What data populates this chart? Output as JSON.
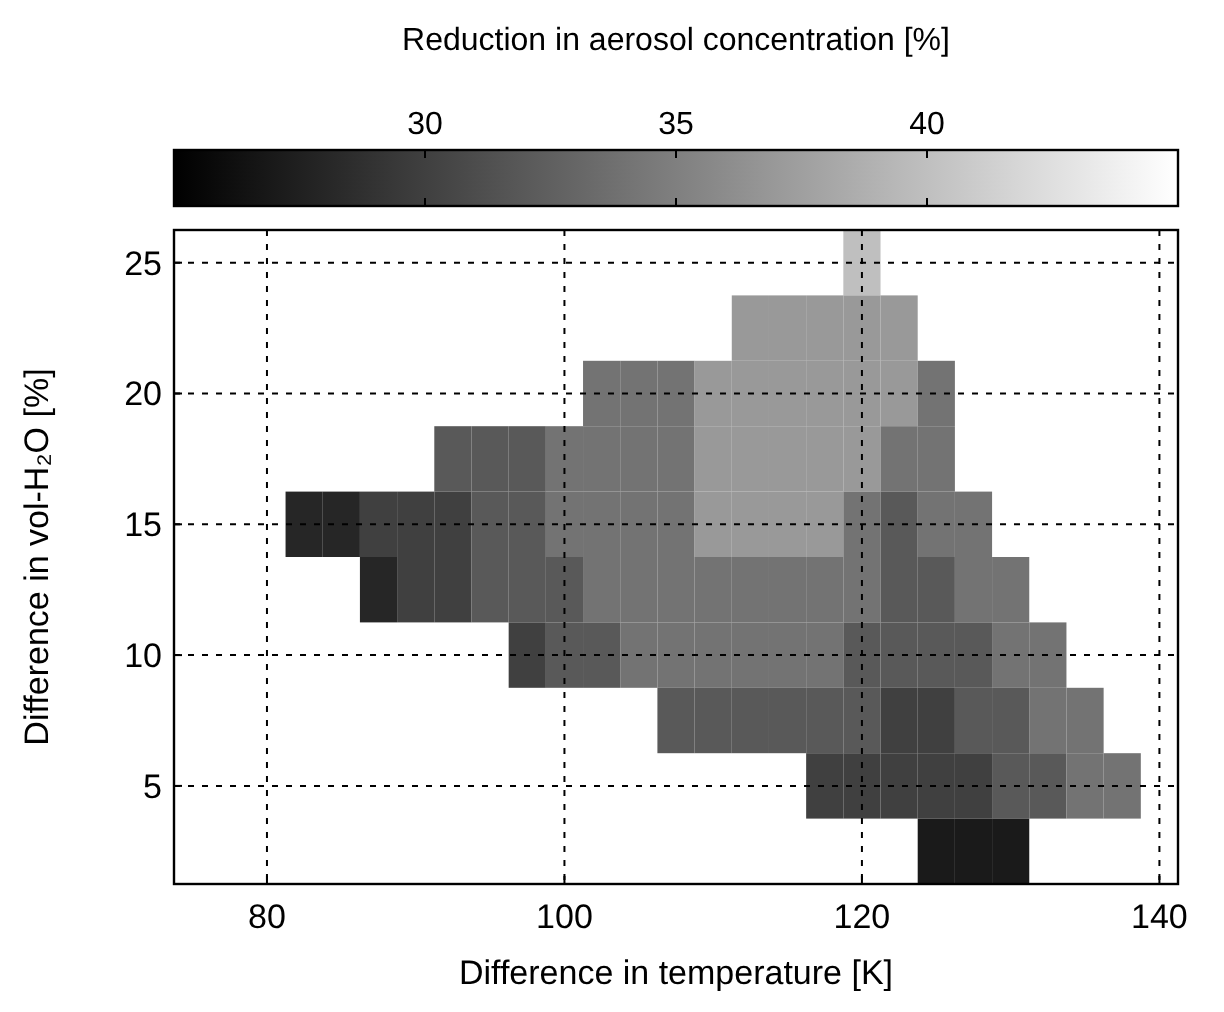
{
  "chart_data": {
    "type": "heatmap",
    "xlabel": "Difference in temperature [K]",
    "ylabel": "Difference in vol-H₂O [%]",
    "clabel": "Reduction in aerosol concentration [%]",
    "clim": [
      25,
      45
    ],
    "cticks": [
      30,
      35,
      40
    ],
    "grid": true,
    "categories": [
      null,
      null,
      "80",
      null,
      null,
      null,
      null,
      null,
      null,
      null,
      "100",
      null,
      null,
      null,
      null,
      null,
      null,
      null,
      "120",
      null,
      null,
      null,
      null,
      null,
      null,
      null,
      "140"
    ],
    "y_categories": [
      "25",
      null,
      "20",
      null,
      "15",
      null,
      "10",
      null,
      "5",
      null
    ],
    "cells": [
      [
        null,
        null,
        null,
        null,
        null,
        null,
        null,
        null,
        null,
        null,
        null,
        null,
        null,
        null,
        null,
        null,
        null,
        null,
        40,
        null,
        null,
        null,
        null,
        null,
        null,
        null,
        null
      ],
      [
        null,
        null,
        null,
        null,
        null,
        null,
        null,
        null,
        null,
        null,
        null,
        null,
        null,
        null,
        null,
        37,
        37,
        37,
        37,
        37,
        null,
        null,
        null,
        null,
        null,
        null,
        null
      ],
      [
        null,
        null,
        null,
        null,
        null,
        null,
        null,
        null,
        null,
        null,
        null,
        34,
        34,
        34,
        37,
        37,
        37,
        37,
        37,
        37,
        34,
        null,
        null,
        null,
        null,
        null,
        null
      ],
      [
        null,
        null,
        null,
        null,
        null,
        null,
        null,
        32,
        32,
        32,
        34,
        34,
        34,
        34,
        37,
        37,
        37,
        37,
        37,
        34,
        34,
        null,
        null,
        null,
        null,
        null,
        null
      ],
      [
        null,
        null,
        null,
        28,
        28,
        30,
        30,
        30,
        32,
        32,
        34,
        34,
        34,
        34,
        37,
        37,
        37,
        37,
        34,
        32,
        34,
        34,
        null,
        null,
        null,
        null,
        null
      ],
      [
        null,
        null,
        null,
        null,
        null,
        28,
        30,
        30,
        32,
        32,
        32,
        34,
        34,
        34,
        34,
        34,
        34,
        34,
        34,
        32,
        32,
        34,
        34,
        null,
        null,
        null,
        null
      ],
      [
        null,
        null,
        null,
        null,
        null,
        null,
        null,
        null,
        null,
        30,
        32,
        32,
        34,
        34,
        34,
        34,
        34,
        34,
        32,
        32,
        32,
        32,
        34,
        34,
        null,
        null,
        null
      ],
      [
        null,
        null,
        null,
        null,
        null,
        null,
        null,
        null,
        null,
        null,
        null,
        null,
        null,
        32,
        32,
        32,
        32,
        32,
        32,
        30,
        30,
        32,
        32,
        34,
        34,
        null,
        null
      ],
      [
        null,
        null,
        null,
        null,
        null,
        null,
        null,
        null,
        null,
        null,
        null,
        null,
        null,
        null,
        null,
        null,
        null,
        30,
        30,
        30,
        30,
        30,
        32,
        32,
        34,
        34,
        null
      ],
      [
        null,
        null,
        null,
        null,
        null,
        null,
        null,
        null,
        null,
        null,
        null,
        null,
        null,
        null,
        null,
        null,
        null,
        null,
        null,
        null,
        27,
        27,
        27,
        null,
        null,
        null,
        null
      ]
    ]
  }
}
